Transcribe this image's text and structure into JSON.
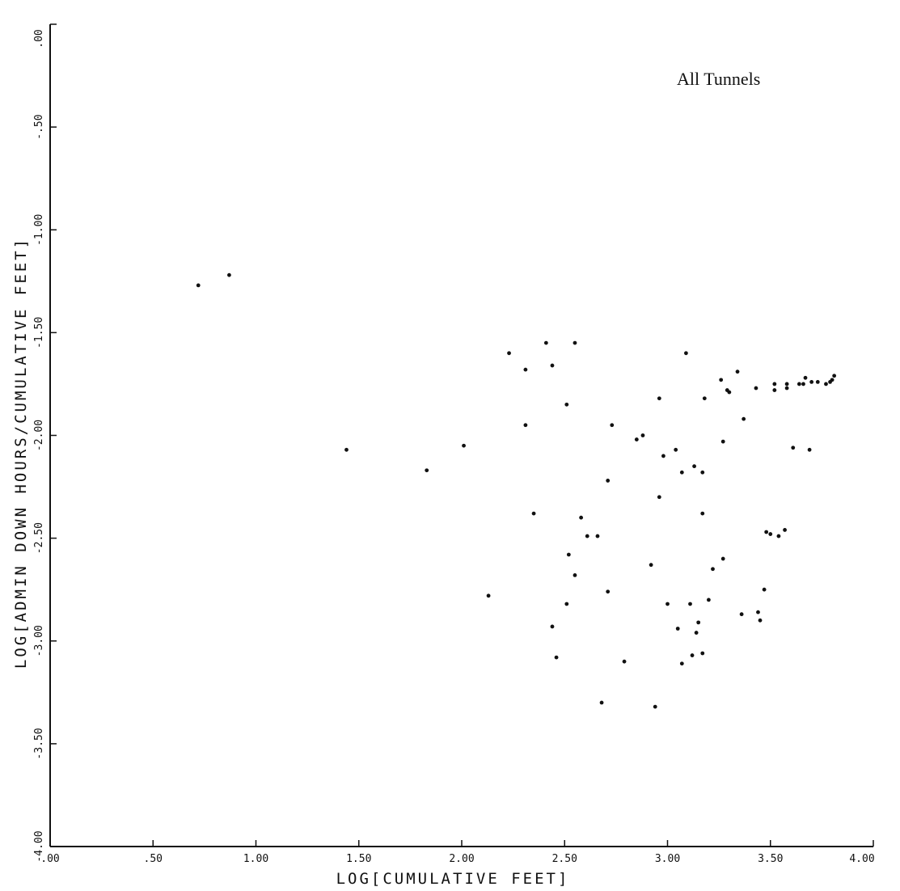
{
  "chart_data": {
    "type": "scatter",
    "annotation": "All Tunnels",
    "xlabel": "LOG[CUMULATIVE FEET]",
    "ylabel": "LOG[ADMIN DOWN HOURS/CUMULATIVE FEET]",
    "xlim": [
      0,
      4
    ],
    "ylim": [
      -4,
      0
    ],
    "x_ticks": [
      0,
      0.5,
      1.0,
      1.5,
      2.0,
      2.5,
      3.0,
      3.5,
      4.0
    ],
    "x_tick_labels": [
      ".00",
      ".50",
      "1.00",
      "1.50",
      "2.00",
      "2.50",
      "3.00",
      "3.50",
      "4.00"
    ],
    "y_ticks": [
      0,
      -0.5,
      -1.0,
      -1.5,
      -2.0,
      -2.5,
      -3.0,
      -3.5,
      -4.0
    ],
    "y_tick_labels": [
      ".00",
      "-.50",
      "-1.00",
      "-1.50",
      "-2.00",
      "-2.50",
      "-3.00",
      "-3.50",
      "-4.00"
    ],
    "grid": false,
    "series": [
      {
        "points": [
          [
            0.72,
            -1.27
          ],
          [
            0.87,
            -1.22
          ],
          [
            1.44,
            -2.07
          ],
          [
            1.83,
            -2.17
          ],
          [
            2.01,
            -2.05
          ],
          [
            2.13,
            -2.78
          ],
          [
            2.23,
            -1.6
          ],
          [
            2.31,
            -1.68
          ],
          [
            2.31,
            -1.95
          ],
          [
            2.35,
            -2.38
          ],
          [
            2.41,
            -1.55
          ],
          [
            2.44,
            -1.66
          ],
          [
            2.44,
            -2.93
          ],
          [
            2.46,
            -3.08
          ],
          [
            2.51,
            -1.85
          ],
          [
            2.51,
            -2.82
          ],
          [
            2.52,
            -2.58
          ],
          [
            2.55,
            -1.55
          ],
          [
            2.55,
            -2.68
          ],
          [
            2.58,
            -2.4
          ],
          [
            2.61,
            -2.49
          ],
          [
            2.66,
            -2.49
          ],
          [
            2.68,
            -3.3
          ],
          [
            2.71,
            -2.22
          ],
          [
            2.71,
            -2.76
          ],
          [
            2.73,
            -1.95
          ],
          [
            2.79,
            -3.1
          ],
          [
            2.85,
            -2.02
          ],
          [
            2.88,
            -2.0
          ],
          [
            2.92,
            -2.63
          ],
          [
            2.94,
            -3.32
          ],
          [
            2.96,
            -1.82
          ],
          [
            2.96,
            -2.3
          ],
          [
            2.98,
            -2.1
          ],
          [
            3.0,
            -2.82
          ],
          [
            3.04,
            -2.07
          ],
          [
            3.05,
            -2.94
          ],
          [
            3.07,
            -2.18
          ],
          [
            3.07,
            -3.11
          ],
          [
            3.09,
            -1.6
          ],
          [
            3.11,
            -2.82
          ],
          [
            3.12,
            -3.07
          ],
          [
            3.13,
            -2.15
          ],
          [
            3.14,
            -2.96
          ],
          [
            3.15,
            -2.91
          ],
          [
            3.17,
            -2.18
          ],
          [
            3.17,
            -2.38
          ],
          [
            3.17,
            -3.06
          ],
          [
            3.18,
            -1.82
          ],
          [
            3.2,
            -2.8
          ],
          [
            3.22,
            -2.65
          ],
          [
            3.26,
            -1.73
          ],
          [
            3.27,
            -2.03
          ],
          [
            3.27,
            -2.6
          ],
          [
            3.29,
            -1.78
          ],
          [
            3.3,
            -1.79
          ],
          [
            3.34,
            -1.69
          ],
          [
            3.36,
            -2.87
          ],
          [
            3.37,
            -1.92
          ],
          [
            3.43,
            -1.77
          ],
          [
            3.44,
            -2.86
          ],
          [
            3.45,
            -2.9
          ],
          [
            3.47,
            -2.75
          ],
          [
            3.48,
            -2.47
          ],
          [
            3.5,
            -2.48
          ],
          [
            3.52,
            -1.75
          ],
          [
            3.52,
            -1.78
          ],
          [
            3.54,
            -2.49
          ],
          [
            3.57,
            -2.46
          ],
          [
            3.58,
            -1.75
          ],
          [
            3.58,
            -1.77
          ],
          [
            3.61,
            -2.06
          ],
          [
            3.64,
            -1.75
          ],
          [
            3.66,
            -1.75
          ],
          [
            3.67,
            -1.72
          ],
          [
            3.69,
            -2.07
          ],
          [
            3.7,
            -1.74
          ],
          [
            3.73,
            -1.74
          ],
          [
            3.77,
            -1.75
          ],
          [
            3.79,
            -1.74
          ],
          [
            3.8,
            -1.73
          ],
          [
            3.81,
            -1.71
          ]
        ]
      }
    ]
  }
}
